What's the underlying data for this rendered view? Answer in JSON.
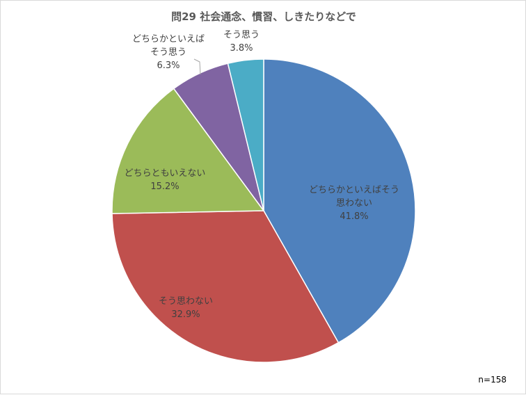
{
  "chart_data": {
    "type": "pie",
    "title": "問29  社会通念、慣習、しきたりなどで",
    "sample_note": "n=158",
    "slices": [
      {
        "label": "どちらかといえばそう思わない",
        "label_lines": [
          "どちらかといえばそう",
          "思わない"
        ],
        "value": 41.8,
        "value_label": "41.8%",
        "color": "#4f81bd"
      },
      {
        "label": "そう思わない",
        "label_lines": [
          "そう思わない"
        ],
        "value": 32.9,
        "value_label": "32.9%",
        "color": "#c0504d"
      },
      {
        "label": "どちらともいえない",
        "label_lines": [
          "どちらともいえない"
        ],
        "value": 15.2,
        "value_label": "15.2%",
        "color": "#9bbb59"
      },
      {
        "label": "どちらかといえばそう思う",
        "label_lines": [
          "どちらかといえば",
          "そう思う"
        ],
        "value": 6.3,
        "value_label": "6.3%",
        "color": "#8064a2"
      },
      {
        "label": "そう思う",
        "label_lines": [
          "そう思う"
        ],
        "value": 3.8,
        "value_label": "3.8%",
        "color": "#4bacc6"
      }
    ]
  }
}
